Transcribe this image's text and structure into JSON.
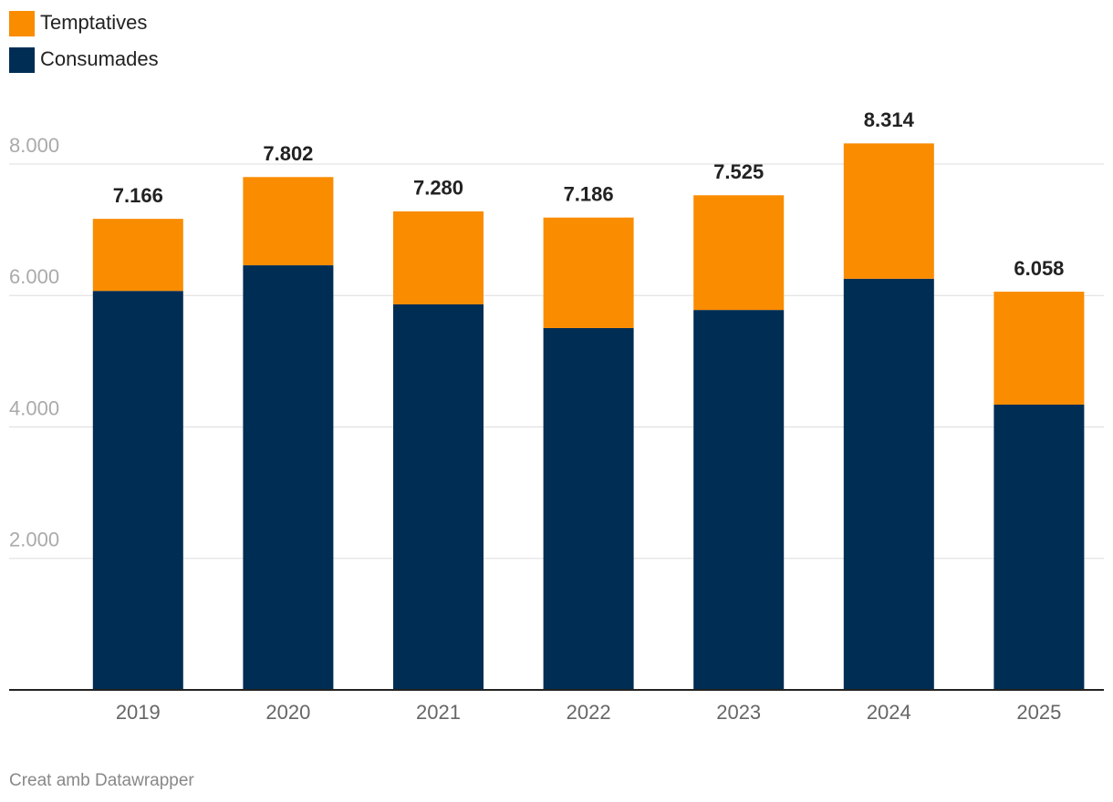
{
  "chart_data": {
    "type": "stacked_bar",
    "categories": [
      "2019",
      "2020",
      "2021",
      "2022",
      "2023",
      "2024",
      "2025"
    ],
    "series": [
      {
        "name": "Consumades",
        "color": "#002d54",
        "values": [
          6070,
          6460,
          5865,
          5505,
          5780,
          6255,
          4340
        ]
      },
      {
        "name": "Temptatives",
        "color": "#fa8c00",
        "values": [
          1096,
          1342,
          1415,
          1681,
          1745,
          2059,
          1718
        ]
      }
    ],
    "totals": {
      "values": [
        7166,
        7802,
        7280,
        7186,
        7525,
        8314,
        6058
      ],
      "value_labels": [
        "7.166",
        "7.802",
        "7.280",
        "7.186",
        "7.525",
        "8.314",
        "6.058"
      ]
    },
    "ylim": [
      0,
      8000
    ],
    "yticks": [
      {
        "value": 2000,
        "label": "2.000"
      },
      {
        "value": 4000,
        "label": "4.000"
      },
      {
        "value": 6000,
        "label": "6.000"
      },
      {
        "value": 8000,
        "label": "8.000"
      }
    ],
    "grid": true,
    "legend": "top-left",
    "footer": "Creat amb Datawrapper"
  }
}
